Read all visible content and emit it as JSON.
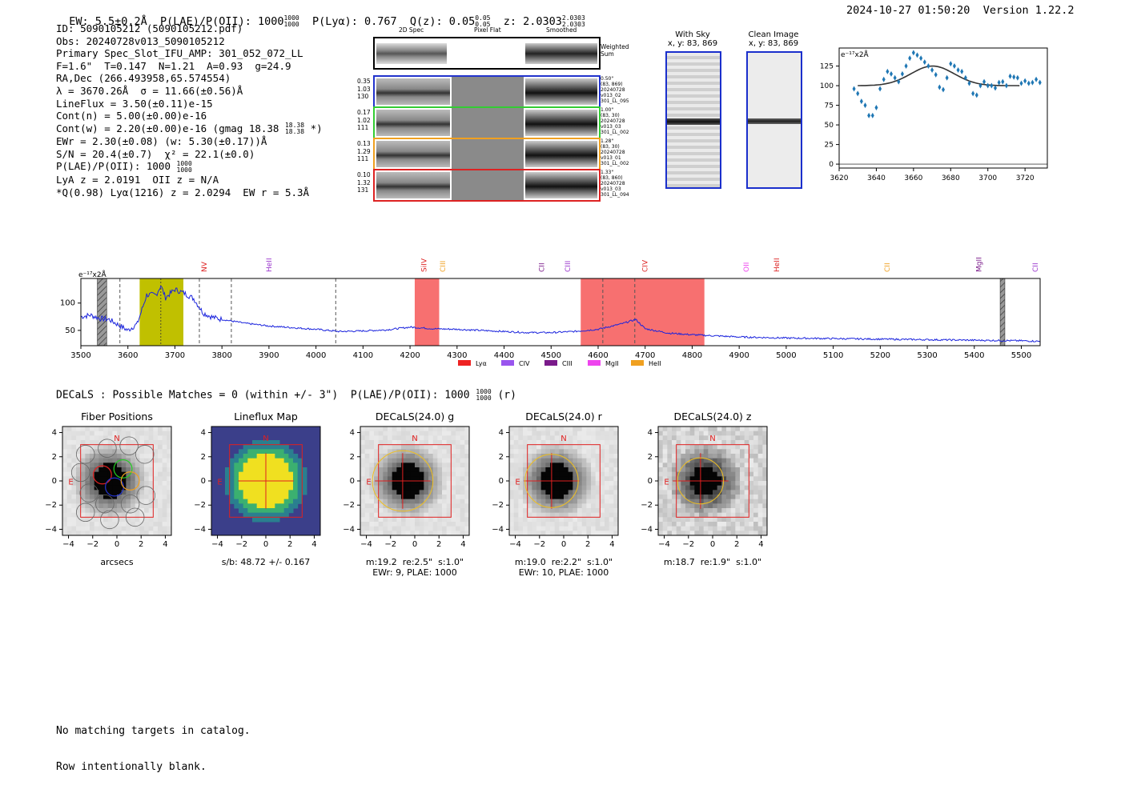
{
  "header": {
    "ew_label": "EW: 5.5±0.2Å  P(LAE)/P(OII): 1000",
    "ew_frac_top": "1000",
    "ew_frac_bot": "1000",
    "plya_label": "P(Lyα): 0.767  Q(z): 0.05",
    "qz_top": "0.05",
    "qz_bot": "0.05",
    "z_label": "z: 2.0303",
    "z_top": "2.0303",
    "z_bot": "2.0303",
    "timestamp": "2024-10-27 01:50:20",
    "version": "Version 1.22.2"
  },
  "info": {
    "id": "ID: 5090105212 (5090105212.pdf)",
    "obs": "Obs: 20240728v013_5090105212",
    "slot": "Primary Spec_Slot_IFU_AMP: 301_052_072_LL",
    "fit": "F=1.6\"  T=0.147  N=1.21  A=0.93  g=24.9",
    "radec": "RA,Dec (266.493958,65.574554)",
    "lambda": "λ = 3670.26Å  σ = 11.66(±0.56)Å",
    "lineflux": "LineFlux = 3.50(±0.11)e-15",
    "contn": "Cont(n) = 5.00(±0.00)e-16",
    "contw": "Cont(w) = 2.20(±0.00)e-16 (gmag 18.38",
    "contw_top": "18.38",
    "contw_bot": "18.38",
    "contw_end": " *)",
    "ewr": "EWr = 2.30(±0.08) (w: 5.30(±0.17))Å",
    "sn": "S/N = 20.4(±0.7)  χ² = 22.1(±0.0)",
    "plae": "P(LAE)/P(OII): 1000",
    "plae_top": "1000",
    "plae_bot": "1000",
    "lya": "LyA z = 2.0191  OII z = N/A",
    "q": "*Q(0.98) Lyα(1216) z = 2.0294  EW r = 5.3Å"
  },
  "fiber_panel": {
    "col_headers": [
      "2D Spec",
      "Pixel Flat",
      "Smoothed"
    ],
    "weighted_label": "Weighted\nSum",
    "rows": [
      {
        "left": "0.35\n1.03\n130",
        "right": "0.50\"\n(83, 869)\n20240728\nv013_02\n301_LL_095",
        "color": "#2233cc"
      },
      {
        "left": "0.17\n1.02\n111",
        "right": "1.00\"\n(83, 30)\n20240728\nv013_03\n301_LL_002",
        "color": "#33cc33"
      },
      {
        "left": "0.13\n1.29\n111",
        "right": "1.28\"\n(83, 30)\n20240728\nv013_01\n301_LL_002",
        "color": "#f0a020"
      },
      {
        "left": "0.10\n1.32\n131",
        "right": "1.33\"\n(83, 860)\n20240728\nv013_03\n301_LL_094",
        "color": "#dd2222"
      }
    ]
  },
  "sky_panels": [
    {
      "title": "With Sky",
      "coords": "x, y: 83, 869"
    },
    {
      "title": "Clean Image",
      "coords": "x, y: 83, 869"
    }
  ],
  "line_fit": {
    "unit_label": "e⁻¹⁷x2Å",
    "x_ticks": [
      "3620",
      "3640",
      "3660",
      "3680",
      "3700",
      "3720"
    ],
    "y_ticks": [
      "0",
      "25",
      "50",
      "75",
      "100",
      "125"
    ]
  },
  "chart_data": [
    {
      "type": "scatter",
      "title": "Line fit",
      "xlabel": "",
      "ylabel": "e-17 x2Å",
      "xlim": [
        3620,
        3732
      ],
      "ylim": [
        -5,
        148
      ],
      "x": [
        3628,
        3630,
        3632,
        3634,
        3636,
        3638,
        3640,
        3642,
        3644,
        3646,
        3648,
        3650,
        3652,
        3654,
        3656,
        3658,
        3660,
        3662,
        3664,
        3666,
        3668,
        3670,
        3672,
        3674,
        3676,
        3678,
        3680,
        3682,
        3684,
        3686,
        3688,
        3690,
        3692,
        3694,
        3696,
        3698,
        3700,
        3702,
        3704,
        3706,
        3708,
        3710,
        3712,
        3714,
        3716,
        3718,
        3720,
        3722,
        3724,
        3726,
        3728
      ],
      "y": [
        96,
        90,
        80,
        75,
        62,
        62,
        72,
        96,
        108,
        118,
        115,
        110,
        105,
        115,
        125,
        135,
        142,
        139,
        135,
        130,
        125,
        120,
        114,
        98,
        95,
        110,
        128,
        125,
        120,
        118,
        110,
        103,
        90,
        88,
        100,
        105,
        100,
        100,
        97,
        104,
        105,
        100,
        112,
        111,
        110,
        103,
        106,
        103,
        104,
        108,
        104
      ],
      "model": {
        "type": "gaussian",
        "center": 3670.26,
        "sigma": 11.66,
        "baseline": 100,
        "amplitude": 25
      }
    },
    {
      "type": "line",
      "title": "Full spectrum",
      "xlabel": "",
      "ylabel": "e-17 x2Å",
      "unit_label": "e⁻¹⁷x2Å",
      "xlim": [
        3500,
        5540
      ],
      "ylim": [
        22,
        145
      ],
      "x_ticks": [
        3500,
        3600,
        3700,
        3800,
        3900,
        4000,
        4100,
        4200,
        4300,
        4400,
        4500,
        4600,
        4700,
        4800,
        4900,
        5000,
        5100,
        5200,
        5300,
        5400,
        5500
      ],
      "y_ticks": [
        50,
        100
      ],
      "x": [
        3500,
        3520,
        3540,
        3560,
        3580,
        3600,
        3620,
        3640,
        3660,
        3670,
        3680,
        3700,
        3720,
        3740,
        3760,
        3780,
        3800,
        3850,
        3900,
        3950,
        4000,
        4050,
        4100,
        4150,
        4200,
        4250,
        4300,
        4350,
        4400,
        4450,
        4500,
        4550,
        4600,
        4650,
        4680,
        4700,
        4750,
        4800,
        4850,
        4900,
        5000,
        5100,
        5200,
        5300,
        5400,
        5500,
        5540
      ],
      "y": [
        75,
        78,
        72,
        70,
        60,
        50,
        62,
        115,
        115,
        132,
        110,
        125,
        118,
        108,
        82,
        74,
        70,
        63,
        58,
        55,
        52,
        48,
        49,
        51,
        56,
        53,
        52,
        50,
        48,
        46,
        46,
        48,
        52,
        62,
        70,
        53,
        45,
        42,
        40,
        38,
        36,
        35,
        34,
        33,
        32,
        31,
        30
      ],
      "lines": [
        {
          "name": "NV",
          "x": 3762,
          "color": "#dd2222"
        },
        {
          "name": "HeII",
          "x": 3900,
          "color": "#9933cc"
        },
        {
          "name": "SiIV",
          "x": 4230,
          "color": "#dd2222"
        },
        {
          "name": "CIII",
          "x": 4270,
          "color": "#f0a020"
        },
        {
          "name": "CII",
          "x": 4480,
          "color": "#7a1a8a"
        },
        {
          "name": "CIII",
          "x": 4535,
          "color": "#9933cc"
        },
        {
          "name": "CIV",
          "x": 4700,
          "color": "#dd2222"
        },
        {
          "name": "OII",
          "x": 4915,
          "color": "#ee44ee"
        },
        {
          "name": "HeII",
          "x": 4980,
          "color": "#dd2222"
        },
        {
          "name": "CII",
          "x": 5215,
          "color": "#f0a020"
        },
        {
          "name": "MgII",
          "x": 5410,
          "color": "#7a1a8a"
        },
        {
          "name": "CII",
          "x": 5530,
          "color": "#9933cc"
        }
      ],
      "bands": [
        {
          "from": 3625,
          "to": 3718,
          "color": "#c0c000"
        },
        {
          "from": 4210,
          "to": 4262,
          "color": "#f77070"
        },
        {
          "from": 4563,
          "to": 4826,
          "color": "#f77070"
        }
      ],
      "dashed": [
        3583,
        3752,
        3820,
        4042,
        4610,
        4678
      ],
      "hatched": [
        {
          "from": 3535,
          "to": 3555
        },
        {
          "from": 5455,
          "to": 5465
        }
      ],
      "legend": [
        {
          "label": "Lyα",
          "color": "#ee2222"
        },
        {
          "label": "CIV",
          "color": "#9955ee"
        },
        {
          "label": "CIII",
          "color": "#7a1a8a"
        },
        {
          "label": "MgII",
          "color": "#ee44ee"
        },
        {
          "label": "HeII",
          "color": "#f0a020"
        }
      ]
    }
  ],
  "decals": {
    "summary": "DECaLS : Possible Matches = 0 (within +/- 3\")  P(LAE)/P(OII): 1000",
    "sum_top": "1000",
    "sum_bot": "1000",
    "sum_end": " (r)"
  },
  "cutouts": [
    {
      "title": "Fiber Positions",
      "cap1": "arcsecs",
      "cap2": ""
    },
    {
      "title": "Lineflux Map",
      "cap1": "s/b: 48.72 +/- 0.167",
      "cap2": ""
    },
    {
      "title": "DECaLS(24.0) g",
      "cap1": "m:19.2  re:2.5\"  s:1.0\"",
      "cap2": "EWr: 9, PLAE: 1000"
    },
    {
      "title": "DECaLS(24.0) r",
      "cap1": "m:19.0  re:2.2\"  s:1.0\"",
      "cap2": "EWr: 10, PLAE: 1000"
    },
    {
      "title": "DECaLS(24.0) z",
      "cap1": "m:18.7  re:1.9\"  s:1.0\"",
      "cap2": ""
    }
  ],
  "cutout_ticks": {
    "x": [
      "−4",
      "−2",
      "0",
      "2",
      "4"
    ],
    "y": [
      "4",
      "2",
      "0",
      "−2",
      "−4"
    ],
    "n_label": "N",
    "e_label": "E"
  },
  "footer": {
    "line1": "No matching targets in catalog.",
    "line2": "Row intentionally blank."
  }
}
